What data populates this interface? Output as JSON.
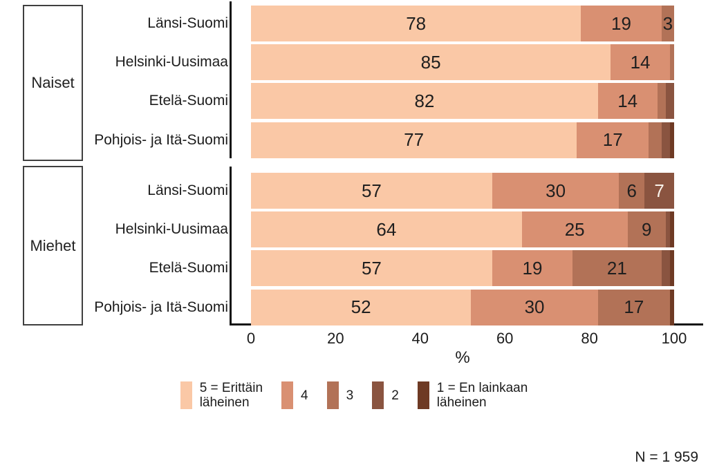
{
  "chart_data": {
    "type": "bar",
    "stacked": true,
    "orientation": "horizontal",
    "title": "",
    "xlabel": "%",
    "xlim": [
      0,
      100
    ],
    "x_ticks": [
      "0",
      "20",
      "40",
      "60",
      "80",
      "100"
    ],
    "grid": false,
    "legend_position": "bottom",
    "legend": [
      {
        "label": "5 = Erittäin\nläheinen",
        "color": "#FAC8A6"
      },
      {
        "label": "4",
        "color": "#D99072"
      },
      {
        "label": "3",
        "color": "#B27257"
      },
      {
        "label": "2",
        "color": "#8A5440"
      },
      {
        "label": "1 = En lainkaan\nläheinen",
        "color": "#6E3A24"
      }
    ],
    "groups": [
      {
        "label": "Naiset",
        "rows": [
          {
            "label": "Länsi-Suomi",
            "values": [
              78,
              19,
              3,
              0,
              0
            ],
            "segment_labels": [
              "78",
              "19",
              "3",
              "",
              ""
            ]
          },
          {
            "label": "Helsinki-Uusimaa",
            "values": [
              85,
              14,
              1,
              0,
              0
            ],
            "segment_labels": [
              "85",
              "14",
              "",
              "",
              ""
            ]
          },
          {
            "label": "Etelä-Suomi",
            "values": [
              82,
              14,
              2,
              2,
              0
            ],
            "segment_labels": [
              "82",
              "14",
              "",
              "",
              ""
            ]
          },
          {
            "label": "Pohjois- ja Itä-Suomi",
            "values": [
              77,
              17,
              3,
              2,
              1
            ],
            "segment_labels": [
              "77",
              "17",
              "",
              "",
              ""
            ]
          }
        ]
      },
      {
        "label": "Miehet",
        "rows": [
          {
            "label": "Länsi-Suomi",
            "values": [
              57,
              30,
              6,
              7,
              0
            ],
            "segment_labels": [
              "57",
              "30",
              "6",
              "7",
              ""
            ]
          },
          {
            "label": "Helsinki-Uusimaa",
            "values": [
              64,
              25,
              9,
              1,
              1
            ],
            "segment_labels": [
              "64",
              "25",
              "9",
              "",
              ""
            ]
          },
          {
            "label": "Etelä-Suomi",
            "values": [
              57,
              19,
              21,
              2,
              1
            ],
            "segment_labels": [
              "57",
              "19",
              "21",
              "",
              ""
            ]
          },
          {
            "label": "Pohjois- ja Itä-Suomi",
            "values": [
              52,
              30,
              17,
              0,
              1
            ],
            "segment_labels": [
              "52",
              "30",
              "17",
              "",
              ""
            ]
          }
        ]
      }
    ],
    "note": "N = 1 959",
    "colors": {
      "axis": "#111111",
      "label_dark": "#1f1f1f",
      "label_light": "#FAF3EB"
    }
  }
}
